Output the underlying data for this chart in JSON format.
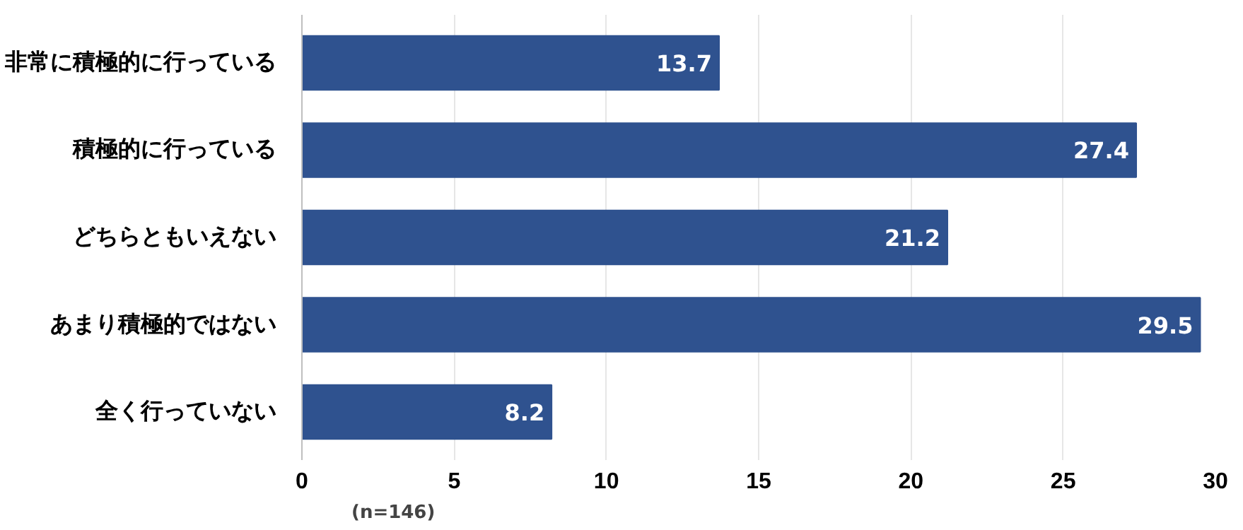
{
  "chart_data": {
    "type": "bar",
    "orientation": "horizontal",
    "categories": [
      "非常に積極的に行っている",
      "積極的に行っている",
      "どちらともいえない",
      "あまり積極的ではない",
      "全く行っていない"
    ],
    "values": [
      13.7,
      27.4,
      21.2,
      29.5,
      8.2
    ],
    "color": "#2f528f",
    "xlim": [
      0,
      30
    ],
    "xticks": [
      0,
      5,
      10,
      15,
      20,
      25,
      30
    ],
    "grid": "x",
    "data_labels": true,
    "annotations": [
      "(n=146)"
    ]
  }
}
